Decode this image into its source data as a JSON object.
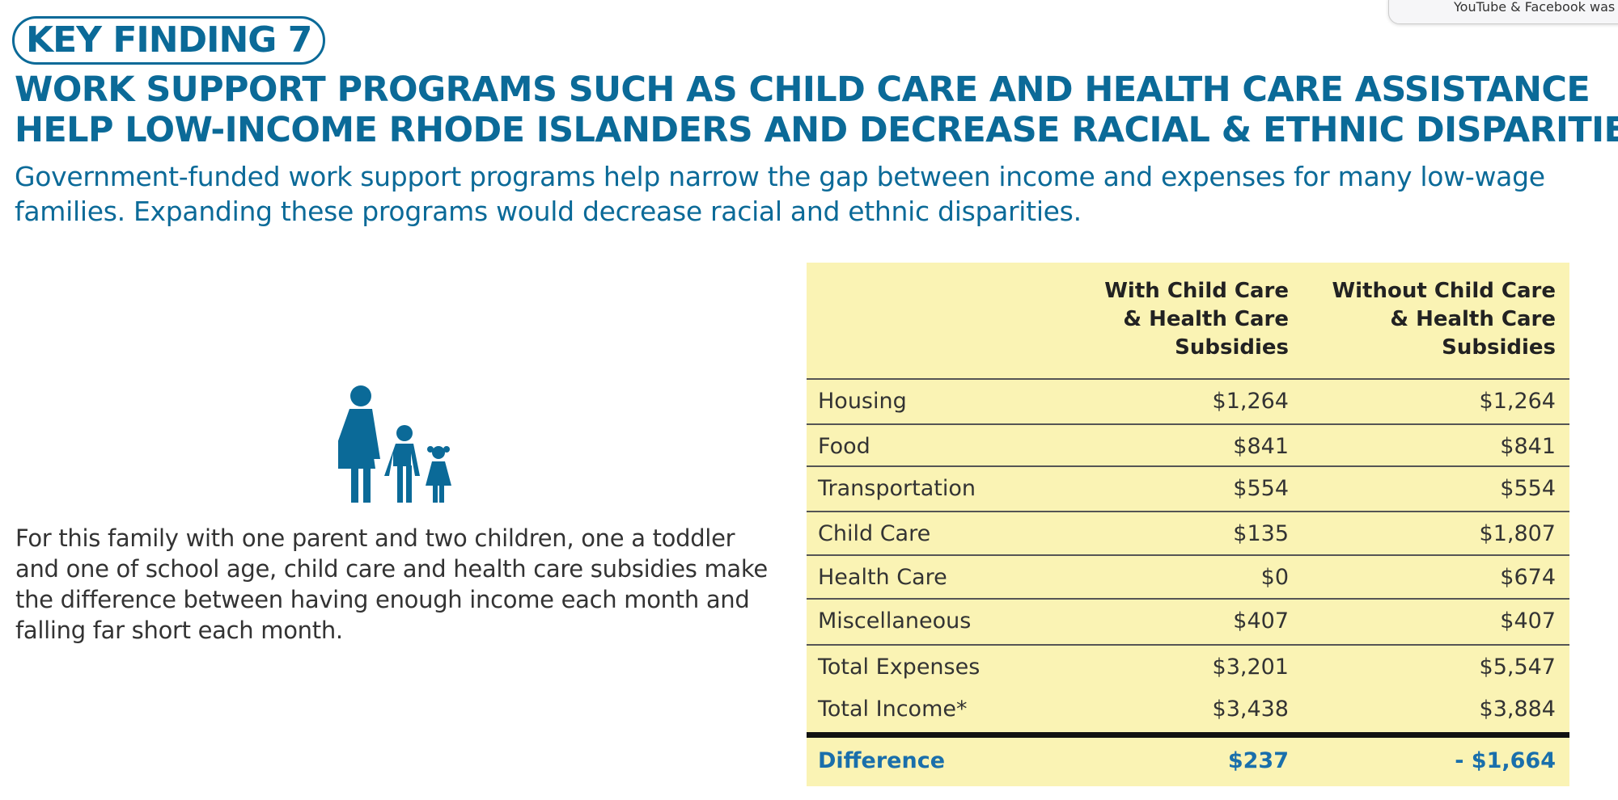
{
  "popup": {
    "text": "YouTube & Facebook was s"
  },
  "header": {
    "badge": "KEY FINDING 7",
    "title_lines": [
      "WORK SUPPORT PROGRAMS SUCH AS CHILD CARE AND HEALTH CARE ASSISTANCE",
      "HELP LOW-INCOME RHODE ISLANDERS AND DECREASE RACIAL & ETHNIC DISPARITIES"
    ],
    "subtitle_lines": [
      "Government-funded work support programs help narrow the gap between income and expenses for many low-wage",
      "families. Expanding these programs would decrease racial and ethnic disparities."
    ]
  },
  "body": {
    "paragraph_lines": [
      "For this family with one parent and two children, one a toddler",
      "and one of school age, child care and health care subsidies make",
      "the difference between having enough income each month and",
      "falling far short each month."
    ]
  },
  "table": {
    "columns": [
      [
        "With Child Care",
        "& Health Care",
        "Subsidies"
      ],
      [
        "Without Child Care",
        "& Health Care",
        "Subsidies"
      ]
    ],
    "rows": [
      [
        "Housing",
        "$1,264",
        "$1,264"
      ],
      [
        "Food",
        "$841",
        "$841"
      ],
      [
        "Transportation",
        "$554",
        "$554"
      ],
      [
        "Child Care",
        "$135",
        "$1,807"
      ],
      [
        "Health Care",
        "$0",
        "$674"
      ],
      [
        "Miscellaneous",
        "$407",
        "$407"
      ],
      [
        "Total Expenses",
        "$3,201",
        "$5,547"
      ],
      [
        "Total Income*",
        "$3,438",
        "$3,884"
      ]
    ],
    "difference": [
      "Difference",
      "$237",
      "- $1,664"
    ]
  }
}
